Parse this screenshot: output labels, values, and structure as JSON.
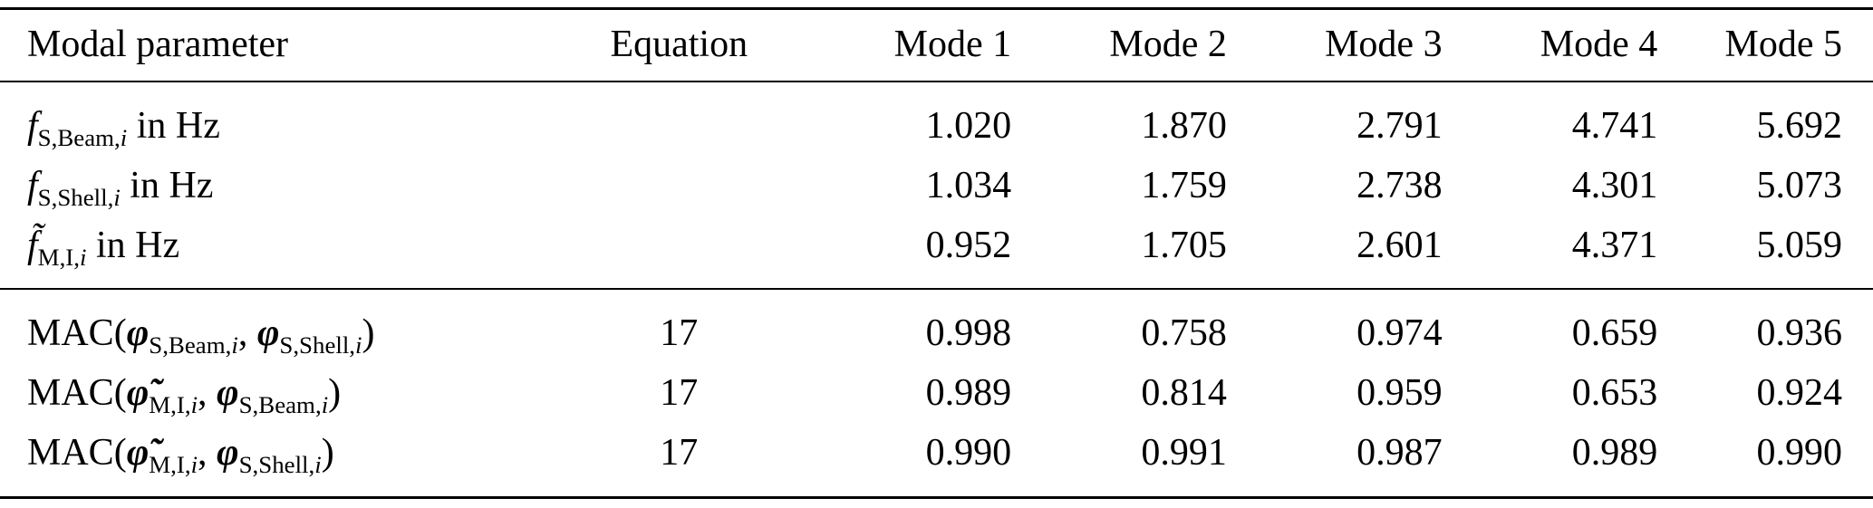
{
  "colors": {
    "background": "#ffffff",
    "text": "#000000",
    "rule": "#000000"
  },
  "table": {
    "headers": [
      "Modal parameter",
      "Equation",
      "Mode 1",
      "Mode 2",
      "Mode 3",
      "Mode 4",
      "Mode 5"
    ],
    "rows": [
      {
        "group": "freq",
        "label_segments": [
          {
            "text": "f",
            "style": "it"
          },
          {
            "text": "S,Beam,",
            "style": "sub"
          },
          {
            "text": "i",
            "style": "subit"
          },
          {
            "text": " in Hz",
            "style": "rm"
          }
        ],
        "equation": "",
        "values": [
          "1.020",
          "1.870",
          "2.791",
          "4.741",
          "5.692"
        ]
      },
      {
        "group": "freq",
        "label_segments": [
          {
            "text": "f",
            "style": "it"
          },
          {
            "text": "S,Shell,",
            "style": "sub"
          },
          {
            "text": "i",
            "style": "subit"
          },
          {
            "text": " in Hz",
            "style": "rm"
          }
        ],
        "equation": "",
        "values": [
          "1.034",
          "1.759",
          "2.738",
          "4.301",
          "5.073"
        ]
      },
      {
        "group": "freq",
        "label_segments": [
          {
            "text": "f̃",
            "style": "it"
          },
          {
            "text": "M,I,",
            "style": "sub"
          },
          {
            "text": "i",
            "style": "subit"
          },
          {
            "text": " in Hz",
            "style": "rm"
          }
        ],
        "equation": "",
        "values": [
          "0.952",
          "1.705",
          "2.601",
          "4.371",
          "5.059"
        ]
      },
      {
        "group": "mac",
        "label_segments": [
          {
            "text": "MAC(",
            "style": "rm"
          },
          {
            "text": "φ",
            "style": "bi"
          },
          {
            "text": "S,Beam,",
            "style": "sub"
          },
          {
            "text": "i",
            "style": "subit"
          },
          {
            "text": ", ",
            "style": "rm"
          },
          {
            "text": "φ",
            "style": "bi"
          },
          {
            "text": "S,Shell,",
            "style": "sub"
          },
          {
            "text": "i",
            "style": "subit"
          },
          {
            "text": ")",
            "style": "rm"
          }
        ],
        "equation": "17",
        "values": [
          "0.998",
          "0.758",
          "0.974",
          "0.659",
          "0.936"
        ]
      },
      {
        "group": "mac",
        "label_segments": [
          {
            "text": "MAC(",
            "style": "rm"
          },
          {
            "text": "φ̃",
            "style": "bi"
          },
          {
            "text": "M,I,",
            "style": "sub"
          },
          {
            "text": "i",
            "style": "subit"
          },
          {
            "text": ", ",
            "style": "rm"
          },
          {
            "text": "φ",
            "style": "bi"
          },
          {
            "text": "S,Beam,",
            "style": "sub"
          },
          {
            "text": "i",
            "style": "subit"
          },
          {
            "text": ")",
            "style": "rm"
          }
        ],
        "equation": "17",
        "values": [
          "0.989",
          "0.814",
          "0.959",
          "0.653",
          "0.924"
        ]
      },
      {
        "group": "mac",
        "label_segments": [
          {
            "text": "MAC(",
            "style": "rm"
          },
          {
            "text": "φ̃",
            "style": "bi"
          },
          {
            "text": "M,I,",
            "style": "sub"
          },
          {
            "text": "i",
            "style": "subit"
          },
          {
            "text": ", ",
            "style": "rm"
          },
          {
            "text": "φ",
            "style": "bi"
          },
          {
            "text": "S,Shell,",
            "style": "sub"
          },
          {
            "text": "i",
            "style": "subit"
          },
          {
            "text": ")",
            "style": "rm"
          }
        ],
        "equation": "17",
        "values": [
          "0.990",
          "0.991",
          "0.987",
          "0.989",
          "0.990"
        ]
      }
    ]
  }
}
